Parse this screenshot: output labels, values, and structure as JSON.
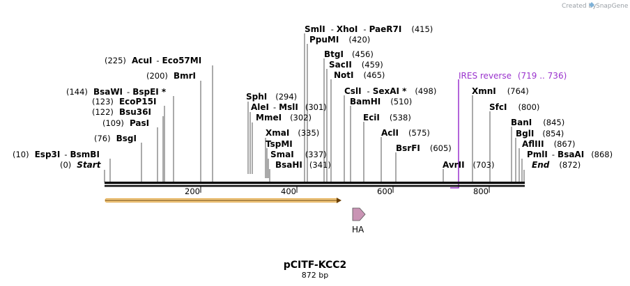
{
  "created_by": "Created by",
  "brand": "SnapGene",
  "plasmid": {
    "name": "pCITF-KCC2",
    "length_label": "872 bp",
    "length": 872
  },
  "features": [
    {
      "name": "IRES reverse",
      "range": "(719 .. 736)",
      "start": 719,
      "end": 736,
      "color": "#9a32cd"
    },
    {
      "name": "HA",
      "start": 520,
      "end": 540,
      "color": "#c994b4"
    },
    {
      "name": "",
      "start": 0,
      "end": 494,
      "color": "#e8b060"
    }
  ],
  "ticks": [
    "200",
    "400",
    "600",
    "800"
  ],
  "sites": [
    {
      "pos": "(10)",
      "name1": "Esp3I",
      "name2": "BsmBI"
    },
    {
      "pos": "(0)",
      "name1": "Start",
      "name2": ""
    },
    {
      "pos": "(76)",
      "name1": "BsgI",
      "name2": ""
    },
    {
      "pos": "(109)",
      "name1": "PasI",
      "name2": ""
    },
    {
      "pos": "(122)",
      "name1": "Bsu36I",
      "name2": ""
    },
    {
      "pos": "(123)",
      "name1": "EcoP15I",
      "name2": ""
    },
    {
      "pos": "(144)",
      "name1": "BsaWI",
      "name2": "BspEI *"
    },
    {
      "pos": "(200)",
      "name1": "BmrI",
      "name2": ""
    },
    {
      "pos": "(225)",
      "name1": "AcuI",
      "name2": "Eco57MI"
    },
    {
      "pos": "(294)",
      "name1": "SphI",
      "name2": ""
    },
    {
      "pos": "(301)",
      "name1": "AleI",
      "name2": "MslI"
    },
    {
      "pos": "(302)",
      "name1": "MmeI",
      "name2": ""
    },
    {
      "pos": "(335)",
      "name1": "XmaI",
      "name2": ""
    },
    {
      "pos": "(337)",
      "name1": "TspMI",
      "name2": ""
    },
    {
      "pos": "(337)",
      "name1": "SmaI",
      "name2": ""
    },
    {
      "pos": "(341)",
      "name1": "BsaHI",
      "name2": ""
    },
    {
      "pos": "(415)",
      "name1": "SmlI",
      "name2": "XhoI",
      "name3": "PaeR7I"
    },
    {
      "pos": "(420)",
      "name1": "PpuMI",
      "name2": ""
    },
    {
      "pos": "(456)",
      "name1": "BtgI",
      "name2": ""
    },
    {
      "pos": "(459)",
      "name1": "SacII",
      "name2": ""
    },
    {
      "pos": "(465)",
      "name1": "NotI",
      "name2": ""
    },
    {
      "pos": "(498)",
      "name1": "CslI",
      "name2": "SexAI *"
    },
    {
      "pos": "(510)",
      "name1": "BamHI",
      "name2": ""
    },
    {
      "pos": "(538)",
      "name1": "EciI",
      "name2": ""
    },
    {
      "pos": "(575)",
      "name1": "AclI",
      "name2": ""
    },
    {
      "pos": "(605)",
      "name1": "BsrFI",
      "name2": ""
    },
    {
      "pos": "(703)",
      "name1": "AvrII",
      "name2": ""
    },
    {
      "pos": "(764)",
      "name1": "XmnI",
      "name2": ""
    },
    {
      "pos": "(800)",
      "name1": "SfcI",
      "name2": ""
    },
    {
      "pos": "(845)",
      "name1": "BanI",
      "name2": ""
    },
    {
      "pos": "(854)",
      "name1": "BglI",
      "name2": ""
    },
    {
      "pos": "(867)",
      "name1": "AflIII",
      "name2": ""
    },
    {
      "pos": "(868)",
      "name1": "PmlI",
      "name2": "BsaAI"
    },
    {
      "pos": "(872)",
      "name1": "End",
      "name2": ""
    }
  ]
}
